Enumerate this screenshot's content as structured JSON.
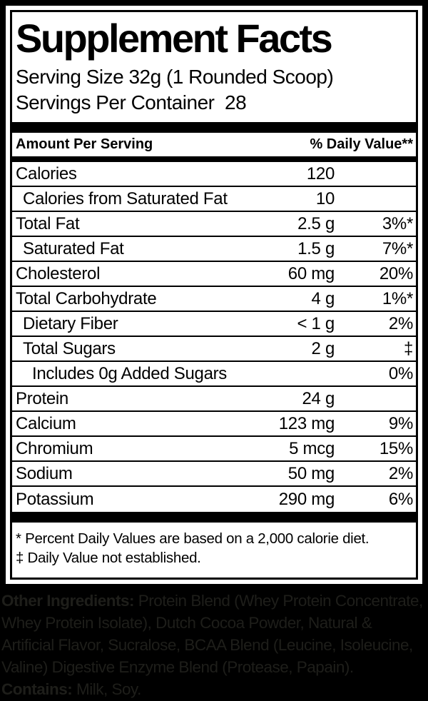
{
  "label": {
    "title": "Supplement Facts",
    "serving_size": "Serving Size 32g (1 Rounded Scoop)",
    "servings_per_container": "Servings Per Container  28",
    "header": {
      "amount": "Amount Per Serving",
      "daily_value": "% Daily Value**"
    },
    "rows": [
      {
        "name": "Calories",
        "amount": "120",
        "dv": "",
        "indent": 0
      },
      {
        "name": "Calories from Saturated Fat",
        "amount": "10",
        "dv": "",
        "indent": 1
      },
      {
        "name": "Total Fat",
        "amount": "2.5 g",
        "dv": "3%*",
        "indent": 0
      },
      {
        "name": "Saturated Fat",
        "amount": "1.5 g",
        "dv": "7%*",
        "indent": 1
      },
      {
        "name": "Cholesterol",
        "amount": "60 mg",
        "dv": "20%",
        "indent": 0
      },
      {
        "name": "Total Carbohydrate",
        "amount": "4 g",
        "dv": "1%*",
        "indent": 0
      },
      {
        "name": "Dietary Fiber",
        "amount": "< 1 g",
        "dv": "2%",
        "indent": 1
      },
      {
        "name": "Total Sugars",
        "amount": "2 g",
        "dv": "‡",
        "indent": 1
      },
      {
        "name": "Includes 0g Added Sugars",
        "amount": "",
        "dv": "0%",
        "indent": 2
      },
      {
        "name": "Protein",
        "amount": "24 g",
        "dv": "",
        "indent": 0
      },
      {
        "name": "Calcium",
        "amount": "123 mg",
        "dv": "9%",
        "indent": 0
      },
      {
        "name": "Chromium",
        "amount": "5 mcg",
        "dv": "15%",
        "indent": 0
      },
      {
        "name": "Sodium",
        "amount": "50 mg",
        "dv": "2%",
        "indent": 0
      },
      {
        "name": "Potassium",
        "amount": "290 mg",
        "dv": "6%",
        "indent": 0
      }
    ],
    "footnotes": {
      "percent": "* Percent Daily Values are based on a 2,000 calorie diet.",
      "dagger": "‡ Daily Value not established."
    }
  },
  "ingredients": {
    "line1_bold": "Other Ingredients:",
    "line1_rest": " Protein Blend (Whey Protein Concentrate,",
    "line2": "Whey Protein Isolate), Dutch Cocoa Powder, Natural &",
    "line3": "Artificial Flavor, Sucralose, BCAA Blend (Leucine, Isoleucine,",
    "line4": "Valine) Digestive Enzyme Blend (Protease, Papain).",
    "line5_bold": "Contains:",
    "line5_rest": " Milk, Soy."
  },
  "colors": {
    "page_bg": "#000000",
    "label_bg": "#ffffff",
    "rule": "#000000",
    "ingredients_text": "#1e1e1a"
  }
}
